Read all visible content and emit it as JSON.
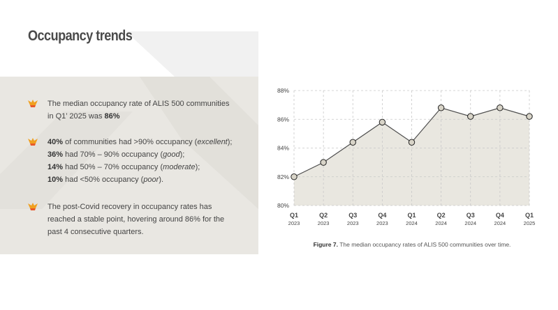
{
  "title": "Occupancy trends",
  "bullets": [
    {
      "lines": [
        [
          {
            "text": "The median occupancy rate of ALIS 500 communities in Q1’ 2025 was "
          },
          {
            "text": "86%",
            "bold": true
          }
        ]
      ]
    },
    {
      "lines": [
        [
          {
            "text": "40%",
            "bold": true
          },
          {
            "text": " of communities had >90% occupancy ("
          },
          {
            "text": "excellent",
            "italic": true
          },
          {
            "text": ");"
          }
        ],
        [
          {
            "text": "36%",
            "bold": true
          },
          {
            "text": " had 70% – 90% occupancy ("
          },
          {
            "text": "good",
            "italic": true
          },
          {
            "text": ");"
          }
        ],
        [
          {
            "text": "14%",
            "bold": true
          },
          {
            "text": " had 50% – 70% occupancy ("
          },
          {
            "text": "moderate",
            "italic": true
          },
          {
            "text": ");"
          }
        ],
        [
          {
            "text": "10%",
            "bold": true
          },
          {
            "text": " had <50% occupancy ("
          },
          {
            "text": "poor",
            "italic": true
          },
          {
            "text": ")."
          }
        ]
      ]
    },
    {
      "lines": [
        [
          {
            "text": "The post-Covid recovery in occupancy rates has reached a stable point, hovering around 86% for the past 4 consecutive quarters."
          }
        ]
      ]
    }
  ],
  "chart_data": {
    "type": "area-line",
    "categories": [
      "Q1",
      "Q2",
      "Q3",
      "Q4",
      "Q1",
      "Q2",
      "Q3",
      "Q4",
      "Q1"
    ],
    "category_years": [
      "2023",
      "2023",
      "2023",
      "2023",
      "2024",
      "2024",
      "2024",
      "2024",
      "2025"
    ],
    "values": [
      82.0,
      83.0,
      84.4,
      85.8,
      84.4,
      86.8,
      86.2,
      86.8,
      86.2
    ],
    "color": "#4d4d4d",
    "fill": "#e9e7e0",
    "marker_color": "#d8d4c8",
    "ylim": [
      80,
      88
    ],
    "yticks": [
      {
        "value": 80,
        "label": "80%"
      },
      {
        "value": 82,
        "label": "82%"
      },
      {
        "value": 84,
        "label": "84%"
      },
      {
        "value": 86,
        "label": "86%"
      },
      {
        "value": 88,
        "label": "88%"
      }
    ],
    "grid": true
  },
  "caption": [
    {
      "text": "Figure 7.",
      "bold": true
    },
    {
      "text": " The median occupancy rates of ALIS 500 communities over time."
    }
  ]
}
